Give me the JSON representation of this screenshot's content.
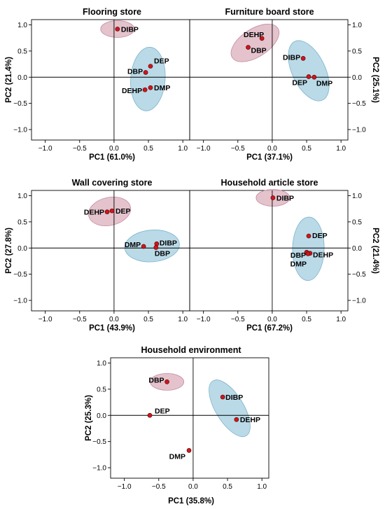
{
  "chart_data": [
    {
      "type": "scatter",
      "title": "Flooring store",
      "xlabel": "PC1 (61.0%)",
      "ylabel": "PC2 (21.4%)",
      "xlim": [
        -1.2,
        1.1
      ],
      "ylim": [
        -1.2,
        1.1
      ],
      "xticks": [
        "−1.0",
        "−0.5",
        "0.0",
        "0.5",
        "1.0"
      ],
      "yticks": [
        "1.0",
        "0.5",
        "0.0",
        "−0.5",
        "−1.0"
      ],
      "ylabel_side": "left",
      "points": [
        {
          "label": "DIBP",
          "x": 0.05,
          "y": 0.92
        },
        {
          "label": "DEP",
          "x": 0.53,
          "y": 0.21
        },
        {
          "label": "DBP",
          "x": 0.46,
          "y": 0.09
        },
        {
          "label": "DMP",
          "x": 0.53,
          "y": -0.2
        },
        {
          "label": "DEHP",
          "x": 0.45,
          "y": -0.24
        }
      ],
      "clusters": [
        {
          "color": "#dfb8c4",
          "members": [
            "DIBP"
          ]
        },
        {
          "color": "#aed3e3",
          "members": [
            "DEP",
            "DBP",
            "DMP",
            "DEHP"
          ]
        }
      ]
    },
    {
      "type": "scatter",
      "title": "Furniture board store",
      "xlabel": "PC1 (37.1%)",
      "ylabel": "PC2 (25.1%)",
      "xlim": [
        -1.2,
        1.1
      ],
      "ylim": [
        -1.2,
        1.1
      ],
      "xticks": [
        "−1.0",
        "−0.5",
        "0.0",
        "0.5",
        "1.0"
      ],
      "yticks": [
        "1.0",
        "0.5",
        "0.0",
        "−0.5",
        "−1.0"
      ],
      "ylabel_side": "right",
      "points": [
        {
          "label": "DEHP",
          "x": -0.15,
          "y": 0.74
        },
        {
          "label": "DBP",
          "x": -0.35,
          "y": 0.57
        },
        {
          "label": "DIBP",
          "x": 0.45,
          "y": 0.36
        },
        {
          "label": "DEP",
          "x": 0.53,
          "y": 0.01
        },
        {
          "label": "DMP",
          "x": 0.61,
          "y": 0.0
        }
      ],
      "clusters": [
        {
          "color": "#dfb8c4",
          "members": [
            "DEHP",
            "DBP"
          ]
        },
        {
          "color": "#aed3e3",
          "members": [
            "DIBP",
            "DEP",
            "DMP"
          ]
        }
      ]
    },
    {
      "type": "scatter",
      "title": "Wall covering store",
      "xlabel": "PC1 (43.9%)",
      "ylabel": "PC2 (27.8%)",
      "xlim": [
        -1.2,
        1.1
      ],
      "ylim": [
        -1.2,
        1.1
      ],
      "xticks": [
        "−1.0",
        "−0.5",
        "0.0",
        "0.5",
        "1.0"
      ],
      "yticks": [
        "1.0",
        "0.5",
        "0.0",
        "−0.5",
        "−1.0"
      ],
      "ylabel_side": "left",
      "points": [
        {
          "label": "DEHP",
          "x": -0.1,
          "y": 0.69
        },
        {
          "label": "DEP",
          "x": -0.03,
          "y": 0.71
        },
        {
          "label": "DIBP",
          "x": 0.62,
          "y": 0.08
        },
        {
          "label": "DMP",
          "x": 0.43,
          "y": 0.03
        },
        {
          "label": "DBP",
          "x": 0.61,
          "y": 0.01
        }
      ],
      "clusters": [
        {
          "color": "#dfb8c4",
          "members": [
            "DEHP",
            "DEP"
          ]
        },
        {
          "color": "#aed3e3",
          "members": [
            "DIBP",
            "DMP",
            "DBP"
          ]
        }
      ]
    },
    {
      "type": "scatter",
      "title": "Household article store",
      "xlabel": "PC1 (67.2%)",
      "ylabel": "PC2 (21.4%)",
      "xlim": [
        -1.2,
        1.1
      ],
      "ylim": [
        -1.2,
        1.1
      ],
      "xticks": [
        "−1.0",
        "−0.5",
        "0.0",
        "0.5",
        "1.0"
      ],
      "yticks": [
        "1.0",
        "0.5",
        "0.0",
        "−0.5",
        "−1.0"
      ],
      "ylabel_side": "right",
      "points": [
        {
          "label": "DIBP",
          "x": 0.01,
          "y": 0.96
        },
        {
          "label": "DEP",
          "x": 0.53,
          "y": 0.23
        },
        {
          "label": "DBP",
          "x": 0.5,
          "y": -0.08
        },
        {
          "label": "DEHP",
          "x": 0.55,
          "y": -0.1
        },
        {
          "label": "DMP",
          "x": 0.52,
          "y": -0.11
        }
      ],
      "clusters": [
        {
          "color": "#dfb8c4",
          "members": [
            "DIBP"
          ]
        },
        {
          "color": "#aed3e3",
          "members": [
            "DEP",
            "DBP",
            "DEHP",
            "DMP"
          ]
        }
      ]
    },
    {
      "type": "scatter",
      "title": "Household environment",
      "xlabel": "PC1 (35.8%)",
      "ylabel": "PC2 (25.3%)",
      "xlim": [
        -1.2,
        1.1
      ],
      "ylim": [
        -1.2,
        1.1
      ],
      "xticks": [
        "−1.0",
        "−0.5",
        "0.0",
        "0.5",
        "1.0"
      ],
      "yticks": [
        "1.0",
        "0.5",
        "0.0",
        "−0.5",
        "−1.0"
      ],
      "ylabel_side": "left",
      "points": [
        {
          "label": "DBP",
          "x": -0.38,
          "y": 0.64
        },
        {
          "label": "DIBP",
          "x": 0.43,
          "y": 0.35
        },
        {
          "label": "DEHP",
          "x": 0.63,
          "y": -0.08
        },
        {
          "label": "DEP",
          "x": -0.63,
          "y": 0.0
        },
        {
          "label": "DMP",
          "x": -0.06,
          "y": -0.67
        }
      ],
      "clusters": [
        {
          "color": "#dfb8c4",
          "members": [
            "DBP"
          ]
        },
        {
          "color": "#aed3e3",
          "members": [
            "DIBP",
            "DEHP"
          ]
        }
      ]
    }
  ]
}
